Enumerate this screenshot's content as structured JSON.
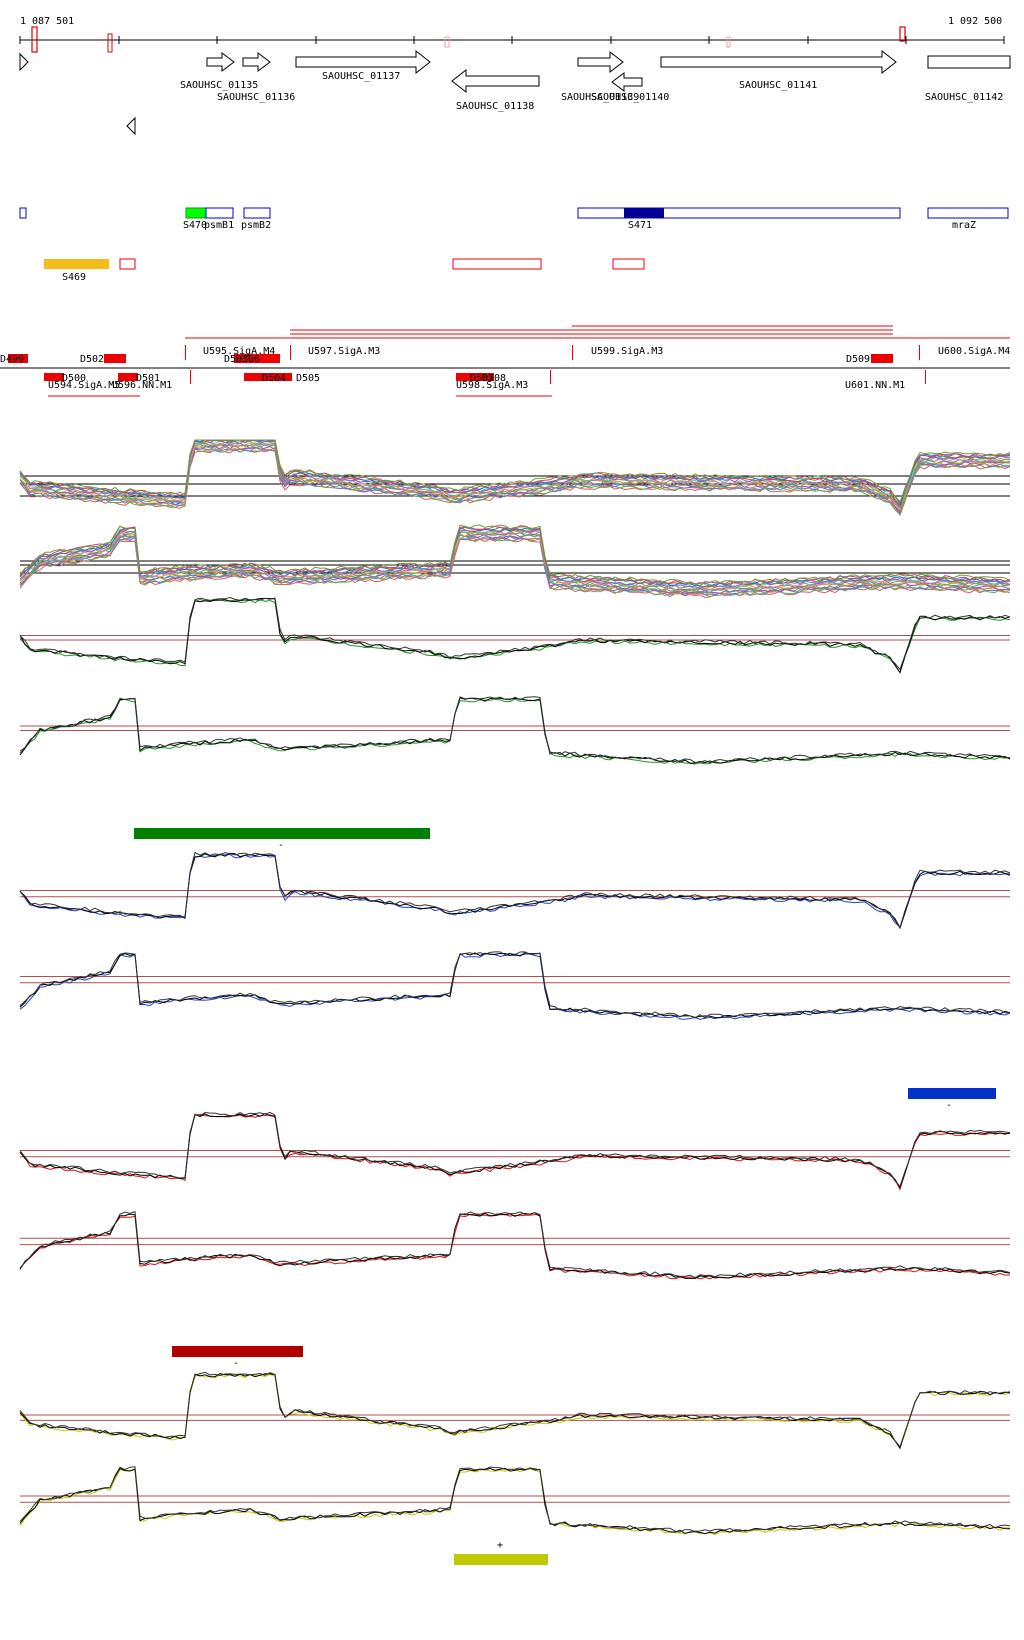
{
  "coords": {
    "start": "1 087 501",
    "end": "1 092 500"
  },
  "genes": [
    {
      "label": "SAOUHSC_01135"
    },
    {
      "label": "SAOUHSC_01136"
    },
    {
      "label": "SAOUHSC_01137"
    },
    {
      "label": "SAOUHSC_01138"
    },
    {
      "label": "SAOUHSC_01139"
    },
    {
      "label": "SAOUHSC_01140"
    },
    {
      "label": "SAOUHSC_01141"
    },
    {
      "label": "SAOUHSC_01142"
    }
  ],
  "features": [
    {
      "label": "S470"
    },
    {
      "label": "psmB1"
    },
    {
      "label": "psmB2"
    },
    {
      "label": "S471"
    },
    {
      "label": "mraZ"
    },
    {
      "label": "S469"
    }
  ],
  "segments": [
    "D499",
    "D502",
    "D500",
    "D501",
    "D503",
    "D506",
    "D504",
    "D505",
    "D507",
    "D508",
    "D509"
  ],
  "promoters": [
    "U595.SigA.M4",
    "U597.SigA.M3",
    "U599.SigA.M3",
    "U600.SigA.M4",
    "U594.SigA.M5",
    "U596.NN.M1",
    "U598.SigA.M3",
    "U601.NN.M1"
  ],
  "condition_marks": [
    {
      "label": "-",
      "color": "#008000"
    },
    {
      "label": "-",
      "color": "#0033cc"
    },
    {
      "label": "-",
      "color": "#b00000"
    },
    {
      "label": "+",
      "color": "#c0c800"
    }
  ],
  "colors": {
    "gene": "#000000",
    "feature_blue": "#0000cc",
    "feature_navy": "#000099",
    "feature_green": "#00ff00",
    "feature_orange": "#f2bc1a",
    "segment_red": "#ff0000",
    "hline": "#b05050",
    "green": "#1f9a1f",
    "blue": "#2244cc",
    "red": "#dd1111",
    "yellow": "#c8cc00"
  }
}
